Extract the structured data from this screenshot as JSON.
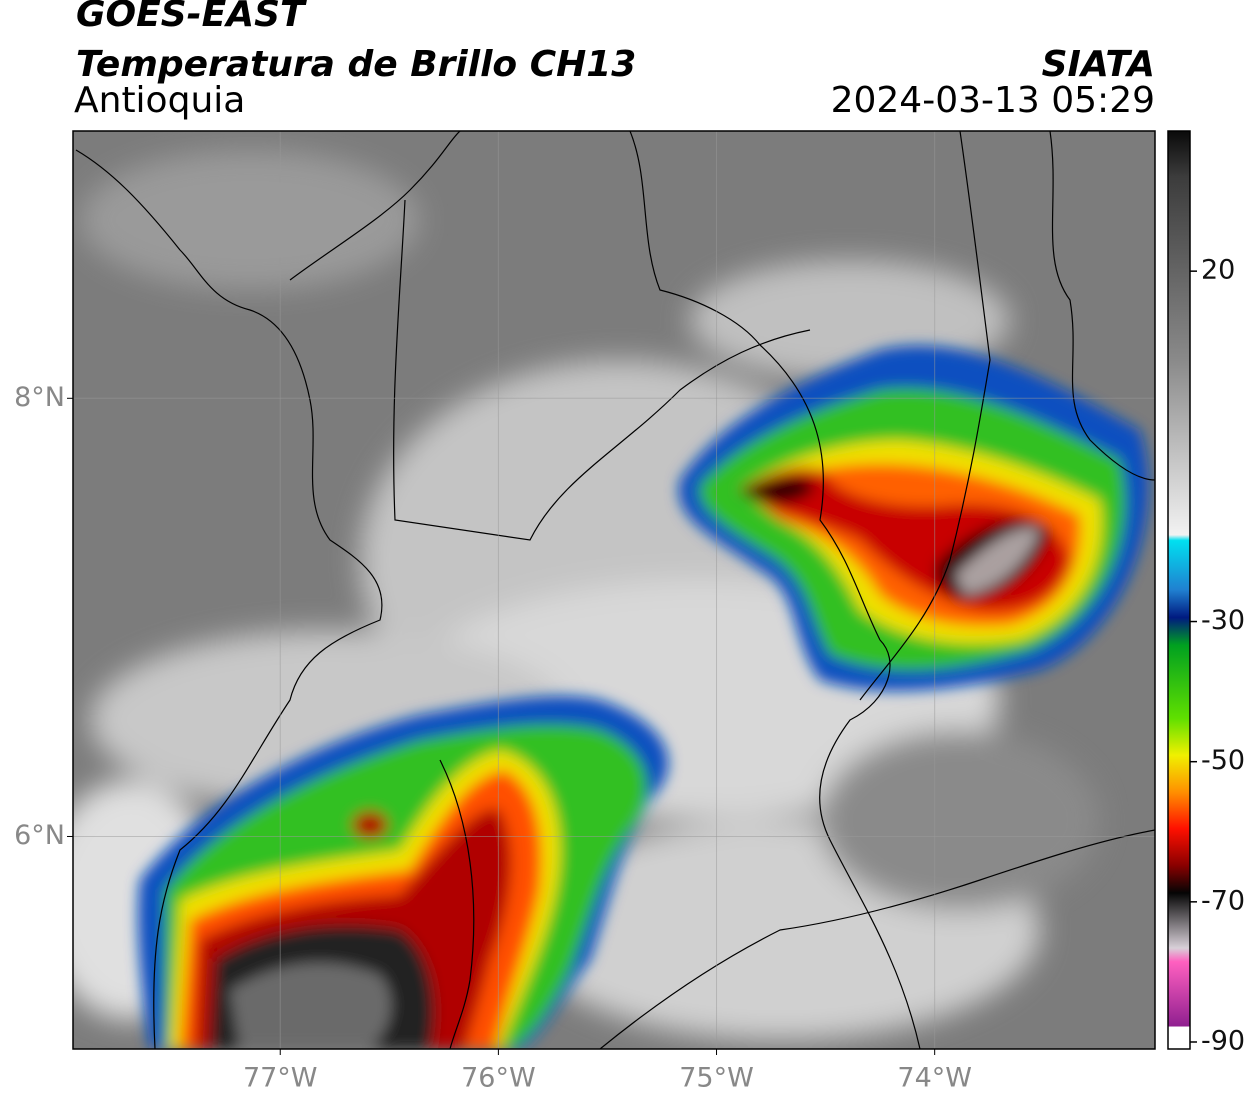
{
  "header": {
    "title": "GOES-EAST",
    "subtitle": "Temperatura de Brillo CH13",
    "region": "Antioquia",
    "source": "SIATA",
    "datetime": "2024-03-13 05:29"
  },
  "map": {
    "xlim": [
      -77.95,
      -72.99
    ],
    "ylim": [
      5.03,
      9.22
    ],
    "xticks": [
      {
        "value": -77,
        "label": "77°W"
      },
      {
        "value": -76,
        "label": "76°W"
      },
      {
        "value": -75,
        "label": "75°W"
      },
      {
        "value": -74,
        "label": "74°W"
      }
    ],
    "yticks": [
      {
        "value": 8,
        "label": "8°N"
      },
      {
        "value": 6,
        "label": "6°N"
      }
    ],
    "grid": true
  },
  "colorbar": {
    "lim": [
      -91,
      40
    ],
    "ticks": [
      20,
      -30,
      -50,
      -70,
      -90
    ]
  }
}
